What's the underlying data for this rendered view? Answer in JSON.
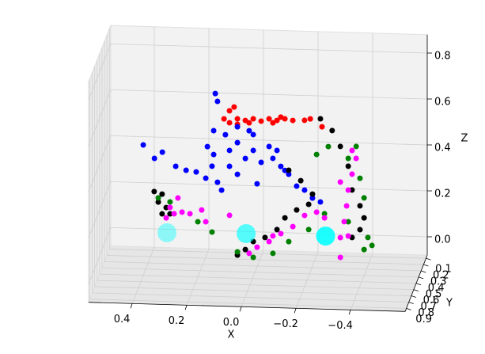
{
  "chart_data": {
    "type": "scatter3d",
    "x_label": "X",
    "y_label": "Y",
    "z_label": "Z",
    "xlim": [
      -0.6,
      0.56
    ],
    "ylim": [
      0.05,
      0.95
    ],
    "zlim": [
      -0.08,
      0.88
    ],
    "xticks": [
      {
        "value": -0.4,
        "label": "−0.4"
      },
      {
        "value": -0.2,
        "label": "−0.2"
      },
      {
        "value": 0,
        "label": "0.0"
      },
      0.2,
      0.4
    ],
    "yticks": [
      0.1,
      0.2,
      0.3,
      0.4,
      0.5,
      0.6,
      0.7,
      0.8,
      0.9
    ],
    "zticks": [
      {
        "value": 0,
        "label": "0.0"
      },
      0.2,
      0.4,
      0.6,
      0.8
    ],
    "grid": true,
    "series": [
      {
        "color": "#ff0000",
        "marker_size": 7,
        "x": [
          0.131,
          0.111,
          0.094,
          0.082,
          0.053,
          0.024,
          -0.005,
          -0.034,
          -0.063,
          -0.092,
          -0.121,
          -0.164,
          -0.185,
          0.082,
          0.039,
          -0.048,
          -0.077,
          0.111,
          -0.228
        ],
        "y": [
          0.2,
          0.2,
          0.2,
          0.2,
          0.2,
          0.2,
          0.2,
          0.2,
          0.2,
          0.2,
          0.2,
          0.2,
          0.2,
          0.2,
          0.2,
          0.2,
          0.2,
          0.2,
          0.2
        ],
        "z": [
          0.529,
          0.565,
          0.582,
          0.531,
          0.525,
          0.533,
          0.524,
          0.535,
          0.529,
          0.537,
          0.531,
          0.533,
          0.54,
          0.507,
          0.515,
          0.518,
          0.544,
          0.513,
          0.507
        ]
      },
      {
        "color": "#0000ff",
        "marker_size": 7,
        "x": [
          0.136,
          0.128,
          0.4,
          0.33,
          0.359,
          0.281,
          0.243,
          0.206,
          0.171,
          0.142,
          0.148,
          0.128,
          0.084,
          0.055,
          0.026,
          -0.003,
          -0.032,
          -0.061,
          -0.075,
          -0.104,
          -0.133,
          -0.162,
          -0.191,
          -0.22,
          -0.249,
          0.142,
          0.099,
          0.055,
          -0.003,
          -0.09,
          -0.119,
          0.113,
          -0.017,
          0.165,
          0.084,
          0.055,
          0.012
        ],
        "y": [
          0.5,
          0.5,
          0.5,
          0.5,
          0.5,
          0.5,
          0.5,
          0.5,
          0.5,
          0.5,
          0.5,
          0.5,
          0.5,
          0.5,
          0.5,
          0.5,
          0.5,
          0.5,
          0.5,
          0.5,
          0.5,
          0.5,
          0.5,
          0.5,
          0.5,
          0.5,
          0.5,
          0.5,
          0.5,
          0.5,
          0.5,
          0.5,
          0.5,
          0.5,
          0.5,
          0.5,
          0.5
        ],
        "z": [
          0.721,
          0.687,
          0.488,
          0.459,
          0.431,
          0.399,
          0.383,
          0.377,
          0.351,
          0.455,
          0.404,
          0.335,
          0.406,
          0.372,
          0.442,
          0.478,
          0.427,
          0.497,
          0.446,
          0.412,
          0.379,
          0.328,
          0.312,
          0.278,
          0.262,
          0.559,
          0.543,
          0.51,
          0.547,
          0.481,
          0.395,
          0.301,
          0.333,
          0.489,
          0.475,
          0.579,
          0.563
        ]
      },
      {
        "color": "#000000",
        "marker_size": 7,
        "x": [
          0.333,
          0.304,
          0.318,
          0.289,
          0.275,
          0.304,
          0.028,
          -0.001,
          -0.03,
          -0.073,
          -0.117,
          -0.146,
          -0.189,
          -0.233,
          -0.276,
          -0.319,
          -0.349,
          -0.378,
          -0.392,
          -0.421,
          -0.436,
          -0.421,
          -0.392,
          -0.16,
          -0.204,
          -0.247
        ],
        "y": [
          0.8,
          0.8,
          0.8,
          0.8,
          0.8,
          0.8,
          0.8,
          0.8,
          0.8,
          0.8,
          0.8,
          0.8,
          0.8,
          0.8,
          0.8,
          0.8,
          0.8,
          0.8,
          0.8,
          0.8,
          0.8,
          0.8,
          0.8,
          0.8,
          0.8,
          0.8
        ],
        "z": [
          0.369,
          0.359,
          0.324,
          0.301,
          0.274,
          0.273,
          0.103,
          0.128,
          0.164,
          0.183,
          0.219,
          0.271,
          0.307,
          0.333,
          0.707,
          0.657,
          0.589,
          0.504,
          0.401,
          0.333,
          0.281,
          0.229,
          0.194,
          0.479,
          0.435,
          0.378
        ]
      },
      {
        "color": "#008000",
        "marker_size": 7,
        "x": [
          0.318,
          0.275,
          0.121,
          0.028,
          -0.03,
          -0.102,
          -0.16,
          -0.233,
          -0.291,
          -0.262,
          -0.305,
          -0.378,
          -0.407,
          -0.421,
          -0.436,
          -0.45,
          -0.436,
          -0.465,
          -0.378,
          0.173
        ],
        "y": [
          0.8,
          0.8,
          0.8,
          0.8,
          0.8,
          0.8,
          0.8,
          0.8,
          0.8,
          0.8,
          0.8,
          0.8,
          0.8,
          0.8,
          0.8,
          0.8,
          0.8,
          0.8,
          0.8,
          0.8
        ],
        "z": [
          0.342,
          0.326,
          0.2,
          0.117,
          0.095,
          0.115,
          0.168,
          0.223,
          0.294,
          0.551,
          0.587,
          0.538,
          0.591,
          0.453,
          0.368,
          0.196,
          0.143,
          0.162,
          0.262,
          0.243
        ]
      },
      {
        "color": "#ff00ff",
        "marker_size": 7,
        "x": [
          0.289,
          0.26,
          0.231,
          0.202,
          0.246,
          0.275,
          0.159,
          0.057,
          -0.015,
          -0.044,
          -0.088,
          -0.131,
          -0.175,
          -0.218,
          -0.262,
          -0.291,
          -0.349,
          -0.363,
          -0.372,
          -0.378,
          -0.392,
          -0.407,
          -0.392,
          -0.349,
          -0.378,
          0.144,
          -0.102,
          -0.349
        ],
        "y": [
          0.8,
          0.8,
          0.8,
          0.8,
          0.8,
          0.8,
          0.8,
          0.8,
          0.8,
          0.8,
          0.8,
          0.8,
          0.8,
          0.8,
          0.8,
          0.8,
          0.8,
          0.8,
          0.8,
          0.8,
          0.8,
          0.8,
          0.8,
          0.8,
          0.8,
          0.8,
          0.8,
          0.8
        ],
        "z": [
          0.256,
          0.275,
          0.283,
          0.277,
          0.344,
          0.302,
          0.295,
          0.275,
          0.112,
          0.14,
          0.166,
          0.202,
          0.234,
          0.284,
          0.3,
          0.276,
          0.192,
          0.262,
          0.331,
          0.4,
          0.47,
          0.539,
          0.573,
          0.106,
          0.2,
          0.244,
          0.191,
          0.434
        ]
      },
      {
        "color": "#00ffff",
        "marker_size": 24,
        "x": [
          0.34,
          0.023,
          -0.295
        ],
        "y": [
          0.2,
          0.5,
          0.8
        ],
        "z": [
          0.026,
          0.115,
          0.197
        ]
      }
    ]
  }
}
